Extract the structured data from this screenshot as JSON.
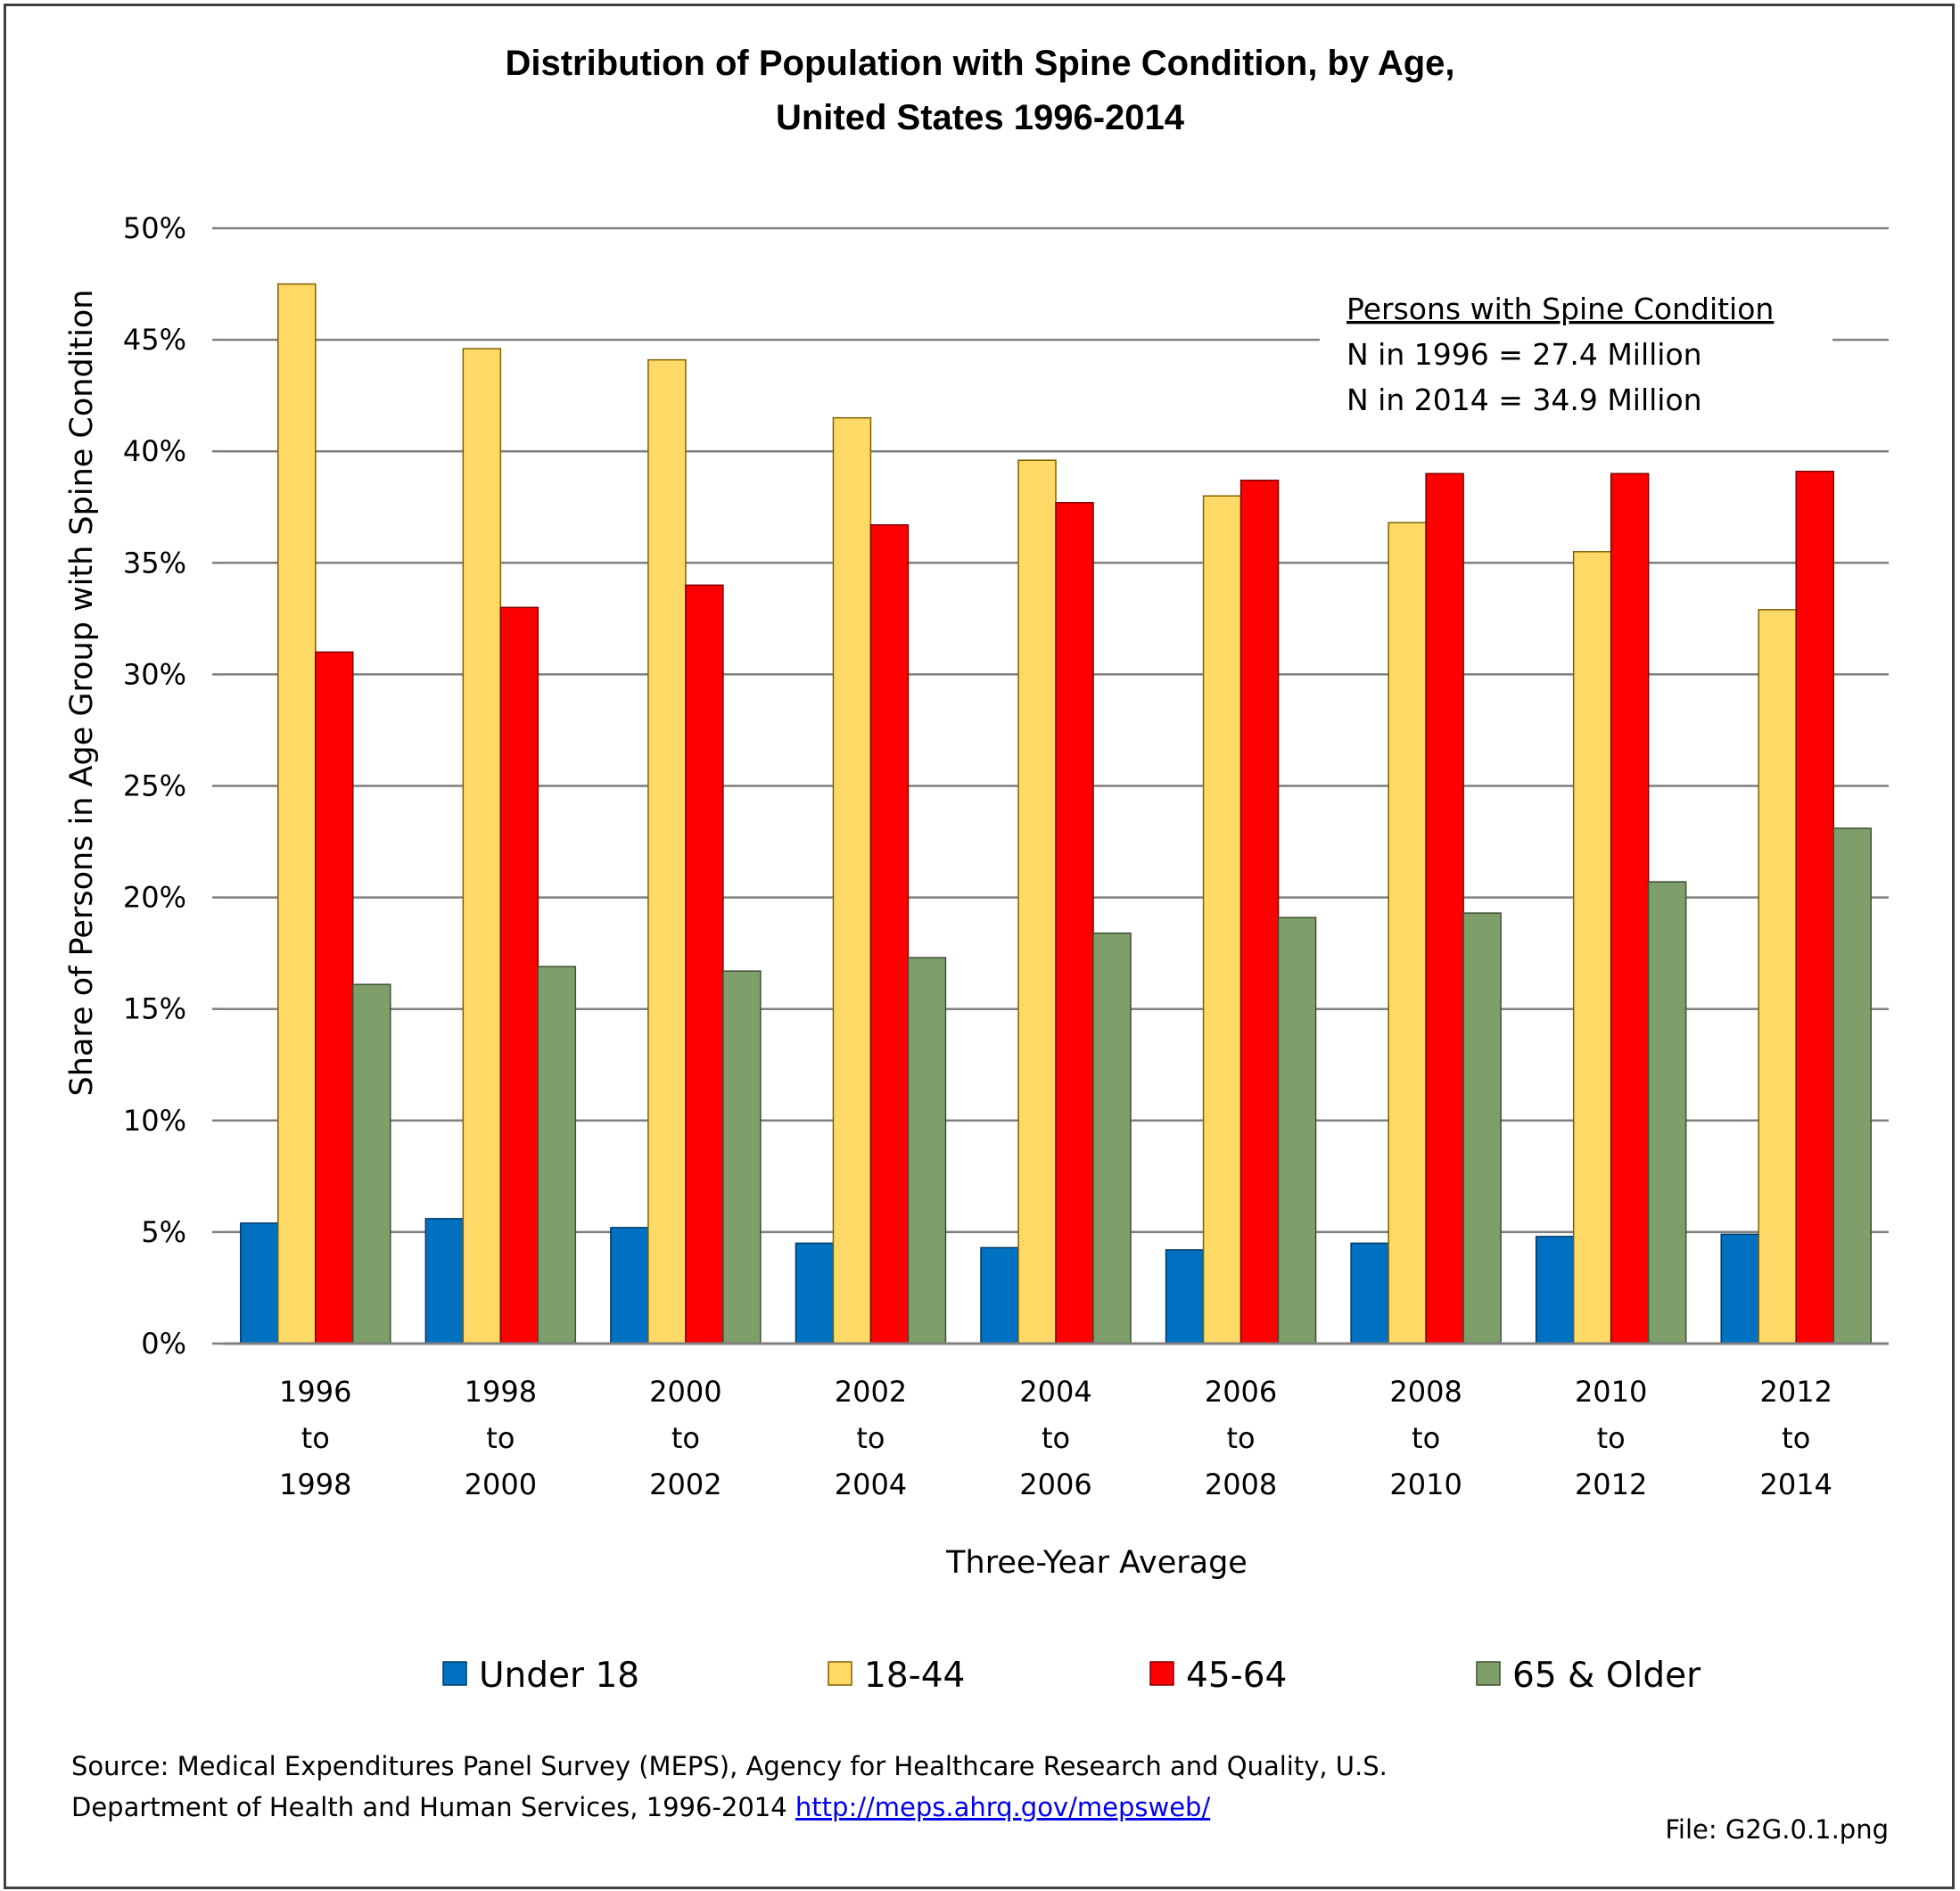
{
  "chart_data": {
    "type": "bar",
    "title": [
      "Distribution of Population with Spine Condition, by Age,",
      "United States 1996-2014"
    ],
    "ylabel": "Share of Persons in Age Group with Spine Condition",
    "xlabel": "Three-Year Average",
    "ylim": [
      0,
      50
    ],
    "yticks": [
      "0%",
      "5%",
      "10%",
      "15%",
      "20%",
      "25%",
      "30%",
      "35%",
      "40%",
      "45%",
      "50%"
    ],
    "grid": true,
    "categories": [
      [
        "1996",
        "to",
        "1998"
      ],
      [
        "1998",
        "to",
        "2000"
      ],
      [
        "2000",
        "to",
        "2002"
      ],
      [
        "2002",
        "to",
        "2004"
      ],
      [
        "2004",
        "to",
        "2006"
      ],
      [
        "2006",
        "to",
        "2008"
      ],
      [
        "2008",
        "to",
        "2010"
      ],
      [
        "2010",
        "to",
        "2012"
      ],
      [
        "2012",
        "to",
        "2014"
      ]
    ],
    "series": [
      {
        "name": "Under 18",
        "color": "#0070c0",
        "values": [
          5.4,
          5.6,
          5.2,
          4.5,
          4.3,
          4.2,
          4.5,
          4.8,
          4.9
        ]
      },
      {
        "name": "18-44",
        "color": "#ffd966",
        "values": [
          47.5,
          44.6,
          44.1,
          41.5,
          39.6,
          38.0,
          36.8,
          35.5,
          32.9
        ]
      },
      {
        "name": "45-64",
        "color": "#ff0000",
        "values": [
          31.0,
          33.0,
          34.0,
          36.7,
          37.7,
          38.7,
          39.0,
          39.0,
          39.1
        ]
      },
      {
        "name": "65 & Older",
        "color": "#7f9f6a",
        "values": [
          16.1,
          16.9,
          16.7,
          17.3,
          18.4,
          19.1,
          19.3,
          20.7,
          23.1
        ]
      }
    ],
    "legend_position": "bottom",
    "annotation": {
      "heading": "Persons with Spine Condition",
      "lines": [
        "N in 1996 = 27.4 Million",
        "N in 2014 = 34.9 Million"
      ],
      "position": "top-right"
    }
  },
  "footer": {
    "source_line1": "Source: Medical Expenditures Panel Survey (MEPS), Agency for Healthcare Research and Quality, U.S.",
    "source_line2": "Department of Health and Human Services, 1996-2014",
    "link": "http://meps.ahrq.gov/mepsweb/",
    "file": "File: G2G.0.1.png"
  }
}
